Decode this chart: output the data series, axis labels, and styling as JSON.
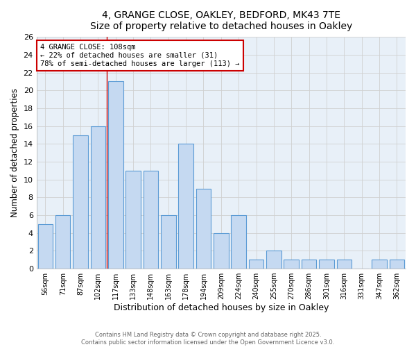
{
  "title_line1": "4, GRANGE CLOSE, OAKLEY, BEDFORD, MK43 7TE",
  "title_line2": "Size of property relative to detached houses in Oakley",
  "xlabel": "Distribution of detached houses by size in Oakley",
  "ylabel": "Number of detached properties",
  "bar_labels": [
    "56sqm",
    "71sqm",
    "87sqm",
    "102sqm",
    "117sqm",
    "133sqm",
    "148sqm",
    "163sqm",
    "178sqm",
    "194sqm",
    "209sqm",
    "224sqm",
    "240sqm",
    "255sqm",
    "270sqm",
    "286sqm",
    "301sqm",
    "316sqm",
    "331sqm",
    "347sqm",
    "362sqm"
  ],
  "bar_values": [
    5,
    6,
    15,
    16,
    21,
    11,
    11,
    6,
    14,
    9,
    4,
    6,
    1,
    2,
    1,
    1,
    1,
    1,
    0,
    1,
    1
  ],
  "bar_color": "#c5d9f1",
  "bar_edge_color": "#5b9bd5",
  "grid_color": "#d0d0d0",
  "red_line_x": 3.5,
  "annotation_text": "4 GRANGE CLOSE: 108sqm\n← 22% of detached houses are smaller (31)\n78% of semi-detached houses are larger (113) →",
  "annotation_box_color": "#ffffff",
  "annotation_box_edge": "#cc0000",
  "ylim": [
    0,
    26
  ],
  "yticks": [
    0,
    2,
    4,
    6,
    8,
    10,
    12,
    14,
    16,
    18,
    20,
    22,
    24,
    26
  ],
  "footer_text": "Contains HM Land Registry data © Crown copyright and database right 2025.\nContains public sector information licensed under the Open Government Licence v3.0.",
  "title_fontsize": 10,
  "subtitle_fontsize": 9,
  "bar_width": 0.85,
  "bg_color": "#e8f0f8"
}
